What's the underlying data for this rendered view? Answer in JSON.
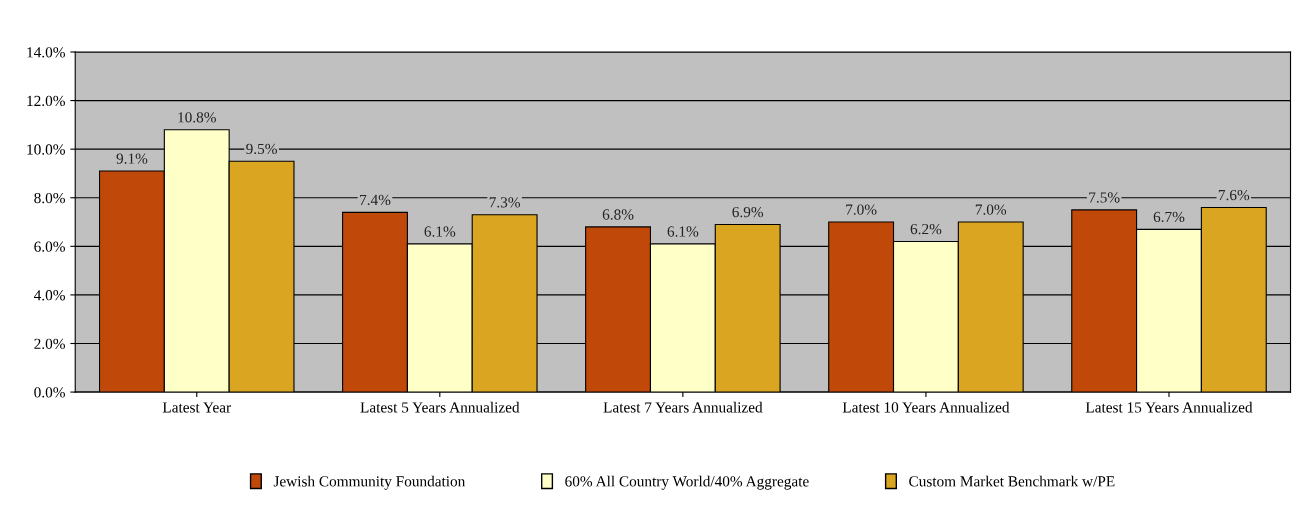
{
  "chart_data": {
    "type": "bar",
    "categories": [
      "Latest Year",
      "Latest 5 Years Annualized",
      "Latest 7 Years Annualized",
      "Latest 10 Years Annualized",
      "Latest 15 Years Annualized"
    ],
    "series": [
      {
        "name": "Jewish Community Foundation",
        "color": "#c0490a",
        "values": [
          9.1,
          7.4,
          6.8,
          7.0,
          7.5
        ],
        "value_labels": [
          "9.1%",
          "7.4%",
          "6.8%",
          "7.0%",
          "7.5%"
        ]
      },
      {
        "name": "60% All Country World/40% Aggregate",
        "color": "#ffffc8",
        "values": [
          10.8,
          6.1,
          6.1,
          6.2,
          6.7
        ],
        "value_labels": [
          "10.8%",
          "6.1%",
          "6.1%",
          "6.2%",
          "6.7%"
        ]
      },
      {
        "name": "Custom Market Benchmark w/PE",
        "color": "#daa520",
        "values": [
          9.5,
          7.3,
          6.9,
          7.0,
          7.6
        ],
        "value_labels": [
          "9.5%",
          "7.3%",
          "6.9%",
          "7.0%",
          "7.6%"
        ]
      }
    ],
    "ylim": [
      0,
      14
    ],
    "yticks": [
      {
        "value": 0,
        "label": "0.0%"
      },
      {
        "value": 2,
        "label": "2.0%"
      },
      {
        "value": 4,
        "label": "4.0%"
      },
      {
        "value": 6,
        "label": "6.0%"
      },
      {
        "value": 8,
        "label": "8.0%"
      },
      {
        "value": 10,
        "label": "10.0%"
      },
      {
        "value": 12,
        "label": "12.0%"
      },
      {
        "value": 14,
        "label": "14.0%"
      }
    ],
    "grid": "y",
    "legend": "bottom"
  }
}
